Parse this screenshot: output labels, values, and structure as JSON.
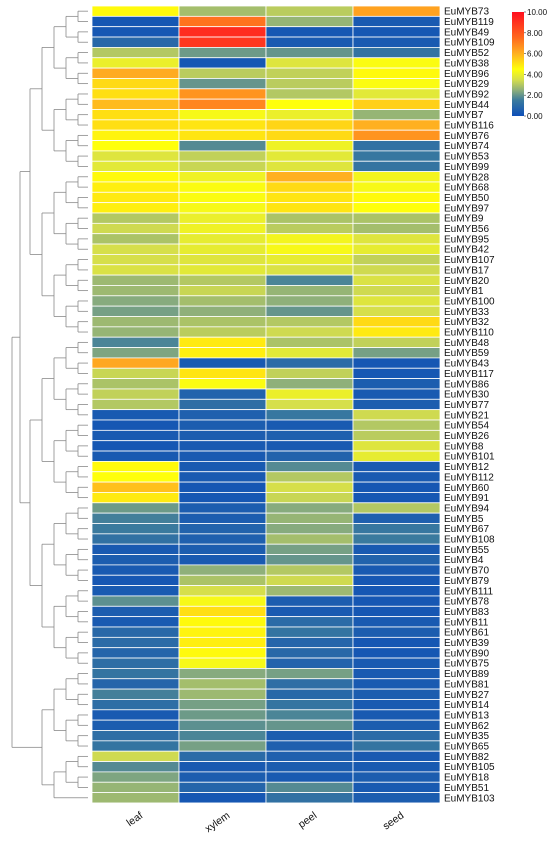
{
  "chart_data": {
    "type": "heatmap",
    "columns": [
      "leaf",
      "xylem",
      "peel",
      "seed"
    ],
    "rows": [
      {
        "label": "EuMYB73",
        "values": [
          4.6,
          2.8,
          3.1,
          6.3
        ]
      },
      {
        "label": "EuMYB119",
        "values": [
          0.3,
          7.3,
          2.6,
          0.4
        ]
      },
      {
        "label": "EuMYB49",
        "values": [
          0.3,
          9.2,
          0.3,
          0.3
        ]
      },
      {
        "label": "EuMYB109",
        "values": [
          0.9,
          8.9,
          0.4,
          0.4
        ]
      },
      {
        "label": "EuMYB52",
        "values": [
          3.0,
          2.1,
          2.0,
          1.3
        ]
      },
      {
        "label": "EuMYB38",
        "values": [
          4.0,
          0.3,
          3.7,
          4.4
        ]
      },
      {
        "label": "EuMYB96",
        "values": [
          6.1,
          3.1,
          3.2,
          4.6
        ]
      },
      {
        "label": "EuMYB29",
        "values": [
          5.2,
          2.0,
          3.1,
          4.4
        ]
      },
      {
        "label": "EuMYB92",
        "values": [
          5.1,
          6.6,
          3.0,
          3.8
        ]
      },
      {
        "label": "EuMYB44",
        "values": [
          5.8,
          6.9,
          4.5,
          5.4
        ]
      },
      {
        "label": "EuMYB7",
        "values": [
          5.1,
          4.3,
          4.0,
          2.6
        ]
      },
      {
        "label": "EuMYB116",
        "values": [
          5.1,
          5.0,
          5.3,
          6.0
        ]
      },
      {
        "label": "EuMYB76",
        "values": [
          4.7,
          5.0,
          5.2,
          6.6
        ]
      },
      {
        "label": "EuMYB74",
        "values": [
          4.5,
          1.8,
          4.1,
          1.2
        ]
      },
      {
        "label": "EuMYB53",
        "values": [
          3.7,
          3.2,
          3.8,
          1.4
        ]
      },
      {
        "label": "EuMYB99",
        "values": [
          3.8,
          3.3,
          3.7,
          1.3
        ]
      },
      {
        "label": "EuMYB28",
        "values": [
          4.6,
          4.1,
          6.0,
          4.2
        ]
      },
      {
        "label": "EuMYB68",
        "values": [
          4.8,
          4.4,
          5.2,
          4.3
        ]
      },
      {
        "label": "EuMYB50",
        "values": [
          4.9,
          4.4,
          5.0,
          4.6
        ]
      },
      {
        "label": "EuMYB97",
        "values": [
          4.8,
          4.3,
          5.0,
          4.5
        ]
      },
      {
        "label": "EuMYB9",
        "values": [
          3.0,
          4.0,
          2.9,
          2.9
        ]
      },
      {
        "label": "EuMYB56",
        "values": [
          3.4,
          4.1,
          3.1,
          2.8
        ]
      },
      {
        "label": "EuMYB95",
        "values": [
          2.9,
          3.9,
          4.2,
          3.7
        ]
      },
      {
        "label": "EuMYB42",
        "values": [
          3.5,
          3.9,
          4.3,
          3.9
        ]
      },
      {
        "label": "EuMYB107",
        "values": [
          3.5,
          3.7,
          3.9,
          3.2
        ]
      },
      {
        "label": "EuMYB17",
        "values": [
          3.6,
          3.8,
          3.6,
          3.4
        ]
      },
      {
        "label": "EuMYB20",
        "values": [
          2.7,
          3.0,
          1.7,
          3.6
        ]
      },
      {
        "label": "EuMYB1",
        "values": [
          2.7,
          3.3,
          2.6,
          3.4
        ]
      },
      {
        "label": "EuMYB100",
        "values": [
          2.4,
          2.8,
          2.5,
          3.7
        ]
      },
      {
        "label": "EuMYB33",
        "values": [
          2.2,
          2.5,
          2.0,
          3.5
        ]
      },
      {
        "label": "EuMYB32",
        "values": [
          2.7,
          2.9,
          3.0,
          5.2
        ]
      },
      {
        "label": "EuMYB110",
        "values": [
          2.6,
          3.1,
          3.4,
          4.9
        ]
      },
      {
        "label": "EuMYB48",
        "values": [
          1.7,
          4.9,
          2.9,
          3.2
        ]
      },
      {
        "label": "EuMYB59",
        "values": [
          2.3,
          4.8,
          3.8,
          2.2
        ]
      },
      {
        "label": "EuMYB43",
        "values": [
          6.2,
          0.4,
          1.0,
          0.3
        ]
      },
      {
        "label": "EuMYB117",
        "values": [
          3.3,
          5.0,
          3.2,
          0.3
        ]
      },
      {
        "label": "EuMYB86",
        "values": [
          2.9,
          4.4,
          2.5,
          0.5
        ]
      },
      {
        "label": "EuMYB30",
        "values": [
          3.2,
          0.7,
          4.0,
          0.4
        ]
      },
      {
        "label": "EuMYB77",
        "values": [
          3.0,
          1.1,
          3.5,
          0.5
        ]
      },
      {
        "label": "EuMYB21",
        "values": [
          0.4,
          0.6,
          1.4,
          3.4
        ]
      },
      {
        "label": "EuMYB54",
        "values": [
          0.3,
          0.5,
          0.4,
          3.0
        ]
      },
      {
        "label": "EuMYB26",
        "values": [
          0.4,
          0.5,
          0.6,
          3.1
        ]
      },
      {
        "label": "EuMYB8",
        "values": [
          0.3,
          0.4,
          0.4,
          3.7
        ]
      },
      {
        "label": "EuMYB101",
        "values": [
          0.4,
          0.4,
          0.7,
          3.9
        ]
      },
      {
        "label": "EuMYB12",
        "values": [
          4.6,
          0.4,
          1.8,
          0.4
        ]
      },
      {
        "label": "EuMYB112",
        "values": [
          4.5,
          0.4,
          3.0,
          0.4
        ]
      },
      {
        "label": "EuMYB60",
        "values": [
          5.7,
          0.3,
          3.5,
          0.3
        ]
      },
      {
        "label": "EuMYB91",
        "values": [
          4.9,
          0.3,
          3.3,
          0.3
        ]
      },
      {
        "label": "EuMYB94",
        "values": [
          2.1,
          0.5,
          2.4,
          3.0
        ]
      },
      {
        "label": "EuMYB5",
        "values": [
          1.6,
          0.5,
          2.6,
          0.6
        ]
      },
      {
        "label": "EuMYB67",
        "values": [
          1.5,
          0.7,
          2.4,
          1.4
        ]
      },
      {
        "label": "EuMYB108",
        "values": [
          1.2,
          0.6,
          2.8,
          1.5
        ]
      },
      {
        "label": "EuMYB55",
        "values": [
          0.4,
          0.5,
          2.2,
          0.4
        ]
      },
      {
        "label": "EuMYB4",
        "values": [
          0.5,
          0.4,
          2.0,
          0.7
        ]
      },
      {
        "label": "EuMYB70",
        "values": [
          0.4,
          2.5,
          3.0,
          0.4
        ]
      },
      {
        "label": "EuMYB79",
        "values": [
          0.3,
          2.9,
          3.4,
          0.3
        ]
      },
      {
        "label": "EuMYB111",
        "values": [
          0.4,
          3.5,
          2.7,
          0.3
        ]
      },
      {
        "label": "EuMYB78",
        "values": [
          1.9,
          4.3,
          0.5,
          0.3
        ]
      },
      {
        "label": "EuMYB83",
        "values": [
          0.5,
          5.1,
          0.4,
          0.3
        ]
      },
      {
        "label": "EuMYB11",
        "values": [
          0.4,
          4.6,
          1.0,
          0.4
        ]
      },
      {
        "label": "EuMYB61",
        "values": [
          0.9,
          4.7,
          1.3,
          0.5
        ]
      },
      {
        "label": "EuMYB39",
        "values": [
          1.0,
          4.8,
          0.8,
          0.3
        ]
      },
      {
        "label": "EuMYB90",
        "values": [
          0.8,
          4.6,
          0.9,
          0.3
        ]
      },
      {
        "label": "EuMYB75",
        "values": [
          1.1,
          4.3,
          0.7,
          0.4
        ]
      },
      {
        "label": "EuMYB89",
        "values": [
          1.3,
          2.4,
          2.2,
          0.4
        ]
      },
      {
        "label": "EuMYB81",
        "values": [
          0.8,
          2.8,
          1.1,
          0.4
        ]
      },
      {
        "label": "EuMYB27",
        "values": [
          1.6,
          2.7,
          0.9,
          0.5
        ]
      },
      {
        "label": "EuMYB14",
        "values": [
          1.1,
          2.2,
          1.3,
          0.4
        ]
      },
      {
        "label": "EuMYB13",
        "values": [
          0.4,
          2.1,
          1.7,
          0.4
        ]
      },
      {
        "label": "EuMYB62",
        "values": [
          0.5,
          1.9,
          2.0,
          0.5
        ]
      },
      {
        "label": "EuMYB35",
        "values": [
          1.1,
          1.7,
          0.5,
          1.0
        ]
      },
      {
        "label": "EuMYB65",
        "values": [
          1.3,
          2.2,
          0.6,
          1.3
        ]
      },
      {
        "label": "EuMYB82",
        "values": [
          3.4,
          1.0,
          0.6,
          0.4
        ]
      },
      {
        "label": "EuMYB105",
        "values": [
          1.8,
          0.4,
          0.5,
          0.4
        ]
      },
      {
        "label": "EuMYB18",
        "values": [
          2.3,
          0.5,
          0.4,
          0.5
        ]
      },
      {
        "label": "EuMYB51",
        "values": [
          2.6,
          0.8,
          1.8,
          0.4
        ]
      },
      {
        "label": "EuMYB103",
        "values": [
          2.7,
          0.3,
          1.2,
          0.5
        ]
      }
    ],
    "color_scale": {
      "min": 0,
      "max": 10,
      "stops": [
        {
          "value": 0,
          "color": "#0d4eb8"
        },
        {
          "value": 1.5,
          "color": "#3a7a9e"
        },
        {
          "value": 2.5,
          "color": "#8fb07a"
        },
        {
          "value": 3.5,
          "color": "#d6df4b"
        },
        {
          "value": 4.5,
          "color": "#ffff0b"
        },
        {
          "value": 6.0,
          "color": "#ffb020"
        },
        {
          "value": 7.5,
          "color": "#ff6a1e"
        },
        {
          "value": 10,
          "color": "#ff0f1f"
        }
      ],
      "ticks": [
        "0.00",
        "2.00",
        "4.00",
        "6.00",
        "8.00",
        "10.00"
      ]
    },
    "dendrogram": "row-clustering tree on left"
  }
}
